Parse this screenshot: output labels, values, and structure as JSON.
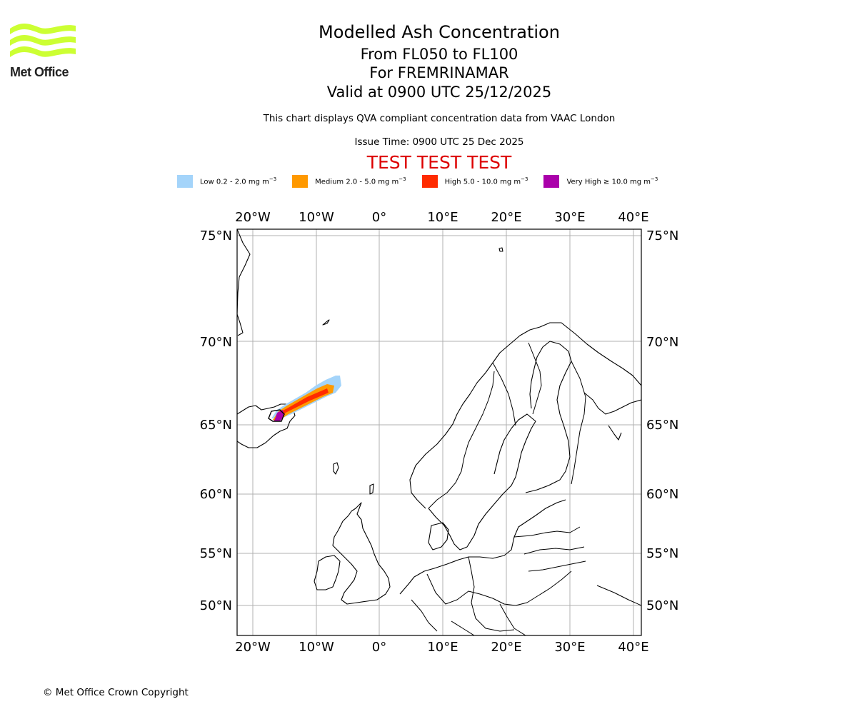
{
  "header": {
    "title": "Modelled Ash Concentration",
    "levels": "From FL050 to FL100",
    "volcano": "For FREMRINAMAR",
    "valid": "Valid at 0900 UTC 25/12/2025",
    "description": "This chart displays QVA compliant concentration data from VAAC London",
    "issue_time": "Issue Time: 0900 UTC 25 Dec 2025",
    "test_banner": "TEST TEST TEST"
  },
  "logo": {
    "text": "Met Office",
    "color": "#ccff33"
  },
  "legend": [
    {
      "label": "Low 0.2 - 2.0 mg m",
      "sup": "−3",
      "color": "#a4d4fa"
    },
    {
      "label": "Medium 2.0 - 5.0 mg m",
      "sup": "−3",
      "color": "#ff9900"
    },
    {
      "label": "High 5.0 - 10.0 mg m",
      "sup": "−3",
      "color": "#ff2b00"
    },
    {
      "label": "Very High ≥ 10.0 mg m",
      "sup": "−3",
      "color": "#aa00aa"
    }
  ],
  "map": {
    "lon_ticks": [
      "20°W",
      "10°W",
      "0°",
      "10°E",
      "20°E",
      "30°E",
      "40°E"
    ],
    "lat_ticks": [
      "75°N",
      "70°N",
      "65°N",
      "60°N",
      "55°N",
      "50°N"
    ],
    "extent": {
      "lon": [
        -22.3,
        41.5
      ],
      "lat": [
        47.8,
        75.3
      ]
    },
    "test_color": "#dd0000"
  },
  "footer": {
    "copyright": "© Met Office Crown Copyright"
  }
}
